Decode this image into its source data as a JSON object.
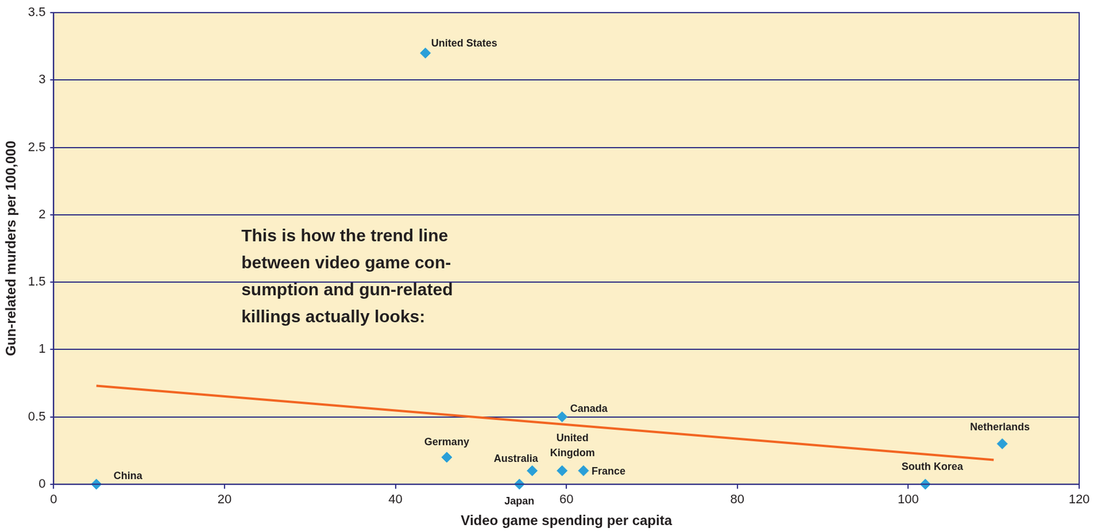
{
  "chart_data": {
    "type": "scatter",
    "x_label": "Video game spending per capita",
    "y_label": "Gun-related murders per 100,000",
    "labels": [
      "China",
      "United States",
      "Germany",
      "Japan",
      "Australia",
      "Canada",
      "United Kingdom",
      "France",
      "South Korea",
      "Netherlands"
    ],
    "x": [
      5,
      43.5,
      46,
      54.5,
      56,
      59.5,
      59.5,
      62,
      102,
      111
    ],
    "values": [
      0,
      3.2,
      0.2,
      0,
      0.1,
      0.5,
      0.1,
      0.1,
      0,
      0.3
    ],
    "color": "#2a9fd8",
    "marker": "diamond",
    "trend_line": {
      "x": [
        5,
        110
      ],
      "values": [
        0.73,
        0.18
      ],
      "color": "#f26522",
      "line_style": "solid"
    },
    "annotation": [
      "This is how the trend line",
      "between video game con-",
      "sumption and gun-related",
      "killings actually looks:"
    ],
    "xlim": [
      0,
      120
    ],
    "xticks": [
      0,
      20,
      40,
      60,
      80,
      100,
      120
    ],
    "ylim": [
      0,
      3.5
    ],
    "yticks": [
      0,
      0.5,
      1,
      1.5,
      2,
      2.5,
      3,
      3.5
    ],
    "grid": "y"
  }
}
